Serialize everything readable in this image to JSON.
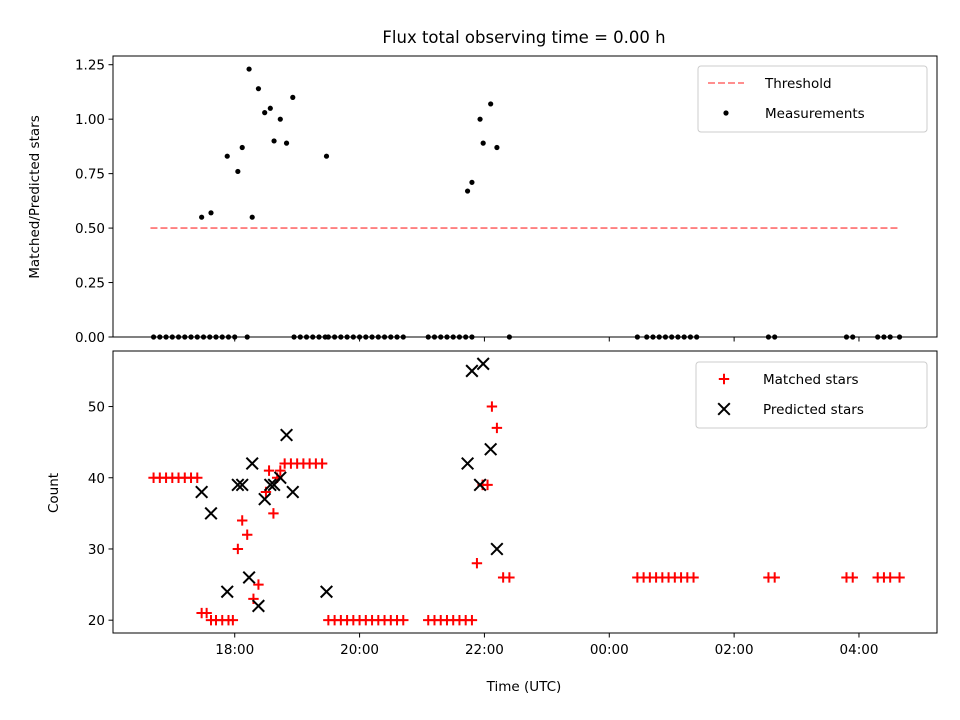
{
  "chart_data": [
    {
      "type": "scatter",
      "title": "Flux total observing time = 0.00 h",
      "ylabel": "Matched/Predicted stars",
      "xlabel": "",
      "ylim": [
        0,
        1.29
      ],
      "yticks": [
        "0.00",
        "0.25",
        "0.50",
        "0.75",
        "1.00",
        "1.25"
      ],
      "legend_position": "top-right",
      "series": [
        {
          "name": "Threshold",
          "kind": "dashed-line",
          "color": "#ff7f7f",
          "x": [
            16.65,
            28.65
          ],
          "y": [
            0.5,
            0.5
          ]
        },
        {
          "name": "Measurements",
          "kind": "points",
          "color": "#000000",
          "x": [
            16.7,
            16.8,
            16.9,
            17.0,
            17.1,
            17.2,
            17.3,
            17.4,
            17.5,
            17.6,
            17.7,
            17.8,
            17.9,
            18.0,
            18.2,
            18.95,
            19.05,
            19.15,
            19.25,
            19.35,
            19.45,
            19.5,
            19.6,
            19.7,
            19.8,
            19.9,
            20.0,
            20.1,
            20.2,
            20.3,
            20.4,
            20.5,
            20.6,
            20.7,
            21.1,
            21.2,
            21.3,
            21.4,
            21.5,
            21.6,
            21.7,
            21.8,
            22.4,
            24.45,
            24.6,
            24.7,
            24.8,
            24.9,
            25.0,
            25.1,
            25.2,
            25.3,
            25.4,
            26.55,
            26.65,
            27.8,
            27.9,
            28.3,
            28.4,
            28.5,
            28.65,
            17.47,
            17.62,
            17.88,
            18.05,
            18.12,
            18.23,
            18.28,
            18.38,
            18.48,
            18.57,
            18.63,
            18.73,
            18.83,
            18.93,
            19.47,
            21.73,
            21.8,
            21.93,
            21.98,
            22.1,
            22.2
          ],
          "y": [
            0,
            0,
            0,
            0,
            0,
            0,
            0,
            0,
            0,
            0,
            0,
            0,
            0,
            0,
            0,
            0,
            0,
            0,
            0,
            0,
            0,
            0,
            0,
            0,
            0,
            0,
            0,
            0,
            0,
            0,
            0,
            0,
            0,
            0,
            0,
            0,
            0,
            0,
            0,
            0,
            0,
            0,
            0,
            0,
            0,
            0,
            0,
            0,
            0,
            0,
            0,
            0,
            0,
            0,
            0,
            0,
            0,
            0,
            0,
            0,
            0,
            0.55,
            0.57,
            0.83,
            0.76,
            0.87,
            1.23,
            0.55,
            1.14,
            1.03,
            1.05,
            0.9,
            1.0,
            0.89,
            1.1,
            0.83,
            0.67,
            0.71,
            1.0,
            0.89,
            1.07,
            0.87
          ]
        }
      ]
    },
    {
      "type": "scatter",
      "title": "",
      "ylabel": "Count",
      "xlabel": "Time (UTC)",
      "ylim": [
        18.2,
        57.8
      ],
      "yticks": [
        "20",
        "30",
        "40",
        "50"
      ],
      "xticks": [
        "18:00",
        "20:00",
        "22:00",
        "00:00",
        "02:00",
        "04:00"
      ],
      "xtick_values": [
        18,
        20,
        22,
        24,
        26,
        28
      ],
      "xlim": [
        16.05,
        29.25
      ],
      "legend_position": "top-right",
      "series": [
        {
          "name": "Matched stars",
          "kind": "plus",
          "color": "#ff0000",
          "x": [
            16.7,
            16.8,
            16.9,
            17.0,
            17.1,
            17.2,
            17.3,
            17.4,
            17.47,
            17.55,
            17.62,
            17.7,
            17.8,
            17.9,
            17.97,
            18.05,
            18.12,
            18.2,
            18.3,
            18.38,
            18.5,
            18.55,
            18.62,
            18.68,
            18.73,
            18.8,
            18.9,
            19.0,
            19.1,
            19.2,
            19.3,
            19.4,
            19.5,
            19.6,
            19.7,
            19.8,
            19.9,
            20.0,
            20.1,
            20.2,
            20.3,
            20.4,
            20.5,
            20.6,
            20.7,
            21.1,
            21.2,
            21.3,
            21.4,
            21.5,
            21.6,
            21.7,
            21.8,
            21.88,
            21.97,
            22.05,
            22.12,
            22.2,
            22.3,
            22.4,
            24.45,
            24.55,
            24.65,
            24.75,
            24.85,
            24.95,
            25.05,
            25.15,
            25.25,
            25.35,
            26.55,
            26.65,
            27.8,
            27.9,
            28.3,
            28.4,
            28.5,
            28.65
          ],
          "y": [
            40,
            40,
            40,
            40,
            40,
            40,
            40,
            40,
            21,
            21,
            20,
            20,
            20,
            20,
            20,
            30,
            34,
            32,
            23,
            25,
            38,
            41,
            35,
            40,
            41,
            42,
            42,
            42,
            42,
            42,
            42,
            42,
            20,
            20,
            20,
            20,
            20,
            20,
            20,
            20,
            20,
            20,
            20,
            20,
            20,
            20,
            20,
            20,
            20,
            20,
            20,
            20,
            20,
            28,
            39,
            39,
            50,
            47,
            26,
            26,
            26,
            26,
            26,
            26,
            26,
            26,
            26,
            26,
            26,
            26,
            26,
            26,
            26,
            26,
            26,
            26,
            26,
            26
          ]
        },
        {
          "name": "Predicted stars",
          "kind": "x",
          "color": "#000000",
          "x": [
            17.47,
            17.62,
            17.88,
            18.05,
            18.12,
            18.23,
            18.28,
            18.38,
            18.48,
            18.57,
            18.63,
            18.73,
            18.83,
            18.93,
            19.47,
            21.73,
            21.8,
            21.93,
            21.98,
            22.1,
            22.2
          ],
          "y": [
            38,
            35,
            24,
            39,
            39,
            26,
            42,
            22,
            37,
            39,
            39,
            40,
            46,
            38,
            24,
            42,
            55,
            39,
            56,
            44,
            30
          ]
        }
      ]
    }
  ]
}
